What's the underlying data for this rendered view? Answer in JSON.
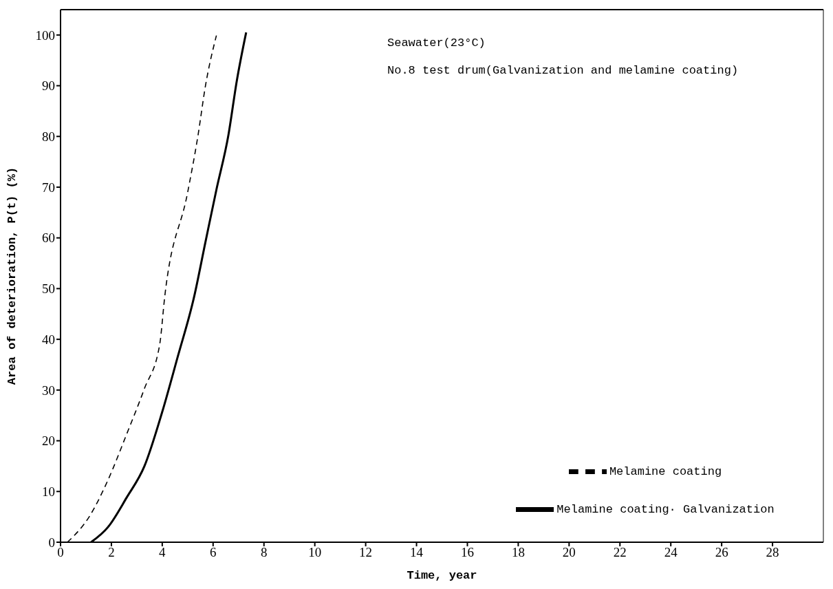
{
  "chart_data": {
    "type": "line",
    "xlabel": "Time, year",
    "ylabel": "Area of deterioration, P(t) (%)",
    "annotations": [
      "Seawater(23°C)",
      "No.8 test drum(Galvanization and melamine coating)"
    ],
    "xlim": [
      0,
      30
    ],
    "xticks": [
      0,
      2,
      4,
      6,
      8,
      10,
      12,
      14,
      16,
      18,
      20,
      22,
      24,
      26,
      28
    ],
    "ylim": [
      0,
      105
    ],
    "yticks": [
      0,
      10,
      20,
      30,
      40,
      50,
      60,
      70,
      80,
      90,
      100
    ],
    "grid": false,
    "legend": "bottom right",
    "marker": "none",
    "series": [
      {
        "name": "Melamine coating",
        "color": "#000000",
        "line_style": "dashed",
        "x": [
          0.27,
          1.15,
          1.87,
          2.6,
          3.3,
          3.9,
          4.1,
          5.0,
          5.4,
          5.7,
          6.13
        ],
        "values": [
          0,
          5.2,
          12.3,
          21.3,
          30.3,
          39,
          48.5,
          69,
          80,
          90,
          99.9
        ]
      },
      {
        "name": "Melamine coating· Galvanization",
        "color": "#000000",
        "line_style": "solid",
        "x": [
          1.2,
          1.87,
          2.6,
          3.3,
          4.0,
          4.6,
          5.25,
          5.7,
          6.13,
          6.6,
          6.93,
          7.3
        ],
        "values": [
          0,
          3,
          8.8,
          15,
          25.7,
          36.4,
          48.3,
          59.2,
          69.5,
          80.2,
          90.9,
          100.5
        ]
      }
    ]
  }
}
